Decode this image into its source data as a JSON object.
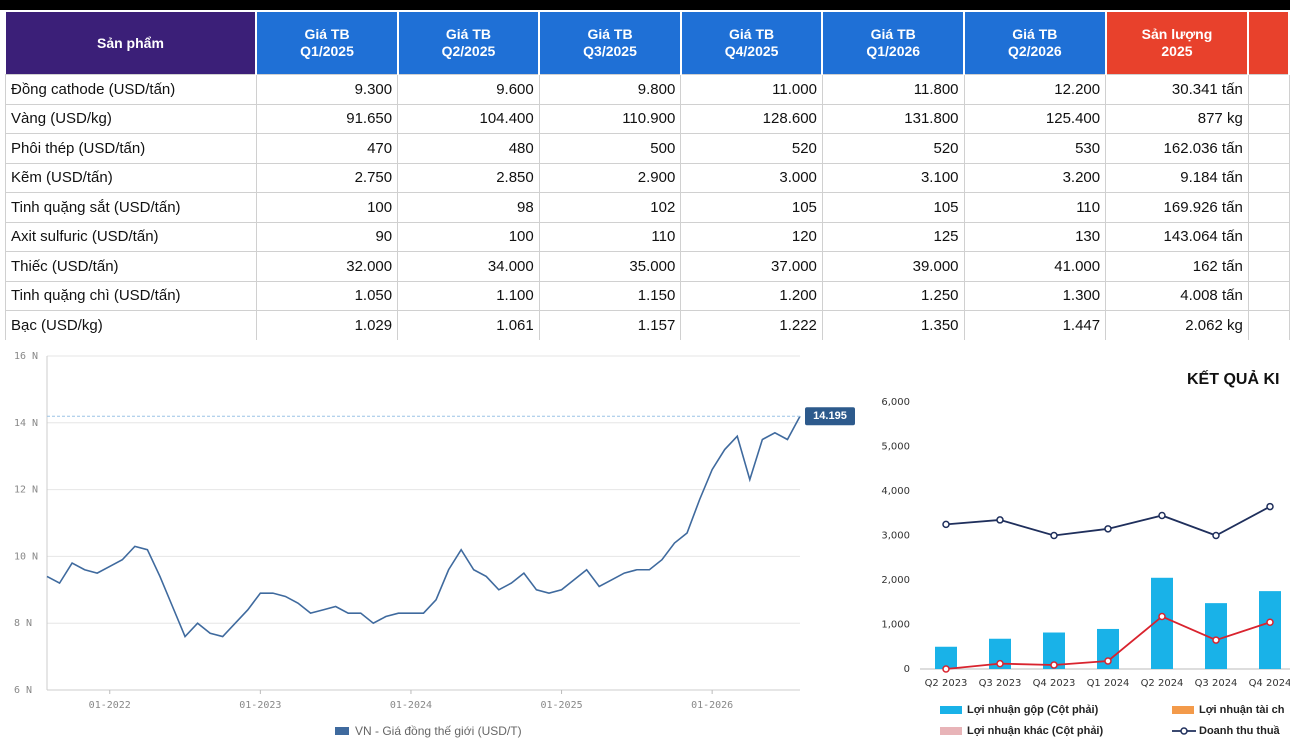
{
  "table": {
    "header": [
      "Sản phẩm",
      "Giá TB\nQ1/2025",
      "Giá TB\nQ2/2025",
      "Giá TB\nQ3/2025",
      "Giá TB\nQ4/2025",
      "Giá TB\nQ1/2026",
      "Giá TB\nQ2/2026",
      "Sản lượng\n2025"
    ],
    "rows": [
      [
        "Đồng cathode (USD/tấn)",
        "9.300",
        "9.600",
        "9.800",
        "11.000",
        "11.800",
        "12.200",
        "30.341 tấn"
      ],
      [
        "Vàng (USD/kg)",
        "91.650",
        "104.400",
        "110.900",
        "128.600",
        "131.800",
        "125.400",
        "877 kg"
      ],
      [
        "Phôi thép (USD/tấn)",
        "470",
        "480",
        "500",
        "520",
        "520",
        "530",
        "162.036 tấn"
      ],
      [
        "Kẽm (USD/tấn)",
        "2.750",
        "2.850",
        "2.900",
        "3.000",
        "3.100",
        "3.200",
        "9.184 tấn"
      ],
      [
        "Tinh quặng sắt (USD/tấn)",
        "100",
        "98",
        "102",
        "105",
        "105",
        "110",
        "169.926 tấn"
      ],
      [
        "Axit sulfuric (USD/tấn)",
        "90",
        "100",
        "110",
        "120",
        "125",
        "130",
        "143.064 tấn"
      ],
      [
        "Thiếc (USD/tấn)",
        "32.000",
        "34.000",
        "35.000",
        "37.000",
        "39.000",
        "41.000",
        "162 tấn"
      ],
      [
        "Tinh quặng chì (USD/tấn)",
        "1.050",
        "1.100",
        "1.150",
        "1.200",
        "1.250",
        "1.300",
        "4.008 tấn"
      ],
      [
        "Bạc (USD/kg)",
        "1.029",
        "1.061",
        "1.157",
        "1.222",
        "1.350",
        "1.447",
        "2.062 kg"
      ]
    ]
  },
  "chart_data": [
    {
      "type": "line",
      "x": [
        "08-2021",
        "09-2021",
        "10-2021",
        "11-2021",
        "12-2021",
        "01-2022",
        "02-2022",
        "03-2022",
        "04-2022",
        "05-2022",
        "06-2022",
        "07-2022",
        "08-2022",
        "09-2022",
        "10-2022",
        "11-2022",
        "12-2022",
        "01-2023",
        "02-2023",
        "03-2023",
        "04-2023",
        "05-2023",
        "06-2023",
        "07-2023",
        "08-2023",
        "09-2023",
        "10-2023",
        "11-2023",
        "12-2023",
        "01-2024",
        "02-2024",
        "03-2024",
        "04-2024",
        "05-2024",
        "06-2024",
        "07-2024",
        "08-2024",
        "09-2024",
        "10-2024",
        "11-2024",
        "12-2024",
        "01-2025",
        "02-2025",
        "03-2025",
        "04-2025",
        "05-2025",
        "06-2025",
        "07-2025",
        "08-2025",
        "09-2025",
        "10-2025",
        "11-2025",
        "12-2025",
        "01-2026",
        "02-2026",
        "03-2026",
        "04-2026",
        "05-2026",
        "06-2026",
        "07-2026",
        "08-2026"
      ],
      "series": [
        {
          "name": "VN - Giá đồng thế giới (USD/T)",
          "color": "#3f6a9e",
          "values": [
            9.4,
            9.2,
            9.8,
            9.6,
            9.5,
            9.7,
            9.9,
            10.3,
            10.2,
            9.4,
            8.5,
            7.6,
            8.0,
            7.7,
            7.6,
            8.0,
            8.4,
            8.9,
            8.9,
            8.8,
            8.6,
            8.3,
            8.4,
            8.5,
            8.3,
            8.3,
            8.0,
            8.2,
            8.3,
            8.3,
            8.3,
            8.7,
            9.6,
            10.2,
            9.6,
            9.4,
            9.0,
            9.2,
            9.5,
            9.0,
            8.9,
            9.0,
            9.3,
            9.6,
            9.1,
            9.3,
            9.5,
            9.6,
            9.6,
            9.9,
            10.4,
            10.7,
            11.7,
            12.6,
            13.2,
            13.6,
            12.3,
            13.5,
            13.7,
            13.5,
            14.195
          ]
        }
      ],
      "xlim": [
        "08-2021",
        "08-2026"
      ],
      "xticks": [
        "01-2022",
        "01-2023",
        "01-2024",
        "01-2025",
        "01-2026"
      ],
      "ylim": [
        6,
        16
      ],
      "yticks": [
        {
          "value": 6,
          "label": "6 N"
        },
        {
          "value": 8,
          "label": "8 N"
        },
        {
          "value": 10,
          "label": "10 N"
        },
        {
          "value": 12,
          "label": "12 N"
        },
        {
          "value": 14,
          "label": "14 N"
        },
        {
          "value": 16,
          "label": "16 N"
        }
      ],
      "grid": true
    },
    {
      "type": "combo",
      "title": "KẾT QUẢ KI",
      "categories": [
        "Q2 2023",
        "Q3 2023",
        "Q4 2023",
        "Q1 2024",
        "Q2 2024",
        "Q3 2024",
        "Q4 2024"
      ],
      "series": [
        {
          "name": "Lợi nhuận gộp (Cột phải)",
          "kind": "bar",
          "color": "#19b2e8",
          "values": [
            500,
            680,
            820,
            900,
            2050,
            1480,
            1750
          ]
        },
        {
          "name": "Lợi nhuận tài ch",
          "kind": "bar",
          "color": "#f39a4a",
          "values": [
            null,
            null,
            null,
            null,
            null,
            null,
            null
          ]
        },
        {
          "name": "Lợi nhuận khác (Cột phải)",
          "kind": "bar",
          "color": "#e8b4b8",
          "values": [
            null,
            null,
            null,
            null,
            null,
            null,
            null
          ]
        },
        {
          "name": "Doanh thu thuầ",
          "kind": "line",
          "color": "#1f2f5c",
          "values": [
            3250,
            3350,
            3000,
            3150,
            3450,
            3000,
            3650
          ]
        },
        {
          "kind": "line",
          "color": "#d9232e",
          "values": [
            0,
            120,
            90,
            180,
            1180,
            650,
            1050
          ]
        }
      ],
      "ylim": [
        0,
        6000
      ],
      "yticks": [
        0,
        {
          "value": 1000,
          "label": "1,000"
        },
        {
          "value": 2000,
          "label": "2,000"
        },
        {
          "value": 3000,
          "label": "3,000"
        },
        {
          "value": 4000,
          "label": "4,000"
        },
        {
          "value": 5000,
          "label": "5,000"
        },
        {
          "value": 6000,
          "label": "6,000"
        }
      ]
    }
  ]
}
